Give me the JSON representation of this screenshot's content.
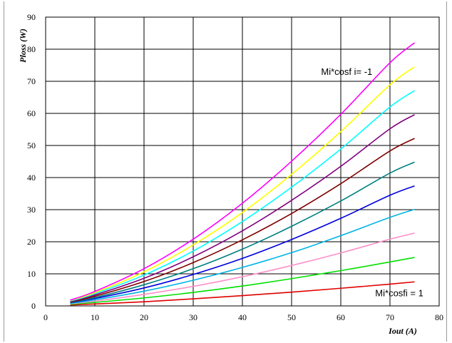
{
  "chart_data": {
    "type": "line",
    "xlabel": "Iout (A)",
    "ylabel": "Ploss (W)",
    "xlim": [
      0,
      80
    ],
    "ylim": [
      0,
      90
    ],
    "x_ticks": [
      "0",
      "10",
      "20",
      "30",
      "40",
      "50",
      "60",
      "70",
      "80"
    ],
    "y_ticks": [
      "0",
      "10",
      "20",
      "30",
      "40",
      "50",
      "60",
      "70",
      "80",
      "90"
    ],
    "grid": true,
    "x": [
      5,
      10,
      20,
      30,
      40,
      50,
      60,
      70,
      75
    ],
    "series": [
      {
        "color": "#e00000",
        "values": [
          0.3,
          0.6,
          1.3,
          2.2,
          3.2,
          4.3,
          5.5,
          6.8,
          7.5
        ]
      },
      {
        "color": "#00e000",
        "values": [
          0.5,
          1.1,
          2.5,
          4.2,
          6.2,
          8.5,
          11.0,
          13.7,
          15.1
        ]
      },
      {
        "color": "#ff8fc8",
        "values": [
          0.7,
          1.5,
          3.6,
          6.1,
          9.1,
          12.6,
          16.5,
          20.8,
          22.7
        ]
      },
      {
        "color": "#00b4e6",
        "values": [
          0.8,
          1.9,
          4.6,
          8.0,
          12.0,
          16.6,
          21.9,
          27.6,
          30.1
        ]
      },
      {
        "color": "#0000dd",
        "values": [
          1.0,
          2.3,
          5.6,
          9.8,
          14.8,
          20.7,
          27.3,
          34.5,
          37.4
        ]
      },
      {
        "color": "#008080",
        "values": [
          1.1,
          2.6,
          6.6,
          11.6,
          17.7,
          24.8,
          32.7,
          41.4,
          44.8
        ]
      },
      {
        "color": "#800000",
        "values": [
          1.2,
          3.0,
          7.6,
          13.5,
          20.6,
          28.8,
          38.1,
          48.3,
          52.2
        ]
      },
      {
        "color": "#800080",
        "values": [
          1.4,
          3.4,
          8.6,
          15.3,
          23.4,
          32.9,
          43.5,
          55.2,
          59.6
        ]
      },
      {
        "color": "#00ffff",
        "values": [
          1.5,
          3.8,
          9.6,
          17.1,
          26.3,
          37.0,
          48.9,
          62.0,
          67.1
        ]
      },
      {
        "color": "#ffff00",
        "values": [
          1.7,
          4.1,
          10.6,
          19.0,
          29.1,
          41.0,
          54.3,
          68.9,
          74.5
        ]
      },
      {
        "color": "#ff00ff",
        "values": [
          1.8,
          4.5,
          11.6,
          20.8,
          32.0,
          45.1,
          59.7,
          75.8,
          82.0
        ]
      }
    ],
    "annotations": [
      {
        "text": "Mi*cosf i= -1",
        "x": 56,
        "y": 72
      },
      {
        "text": "Mi*cosfi = 1",
        "x": 67,
        "y": 3
      }
    ]
  }
}
